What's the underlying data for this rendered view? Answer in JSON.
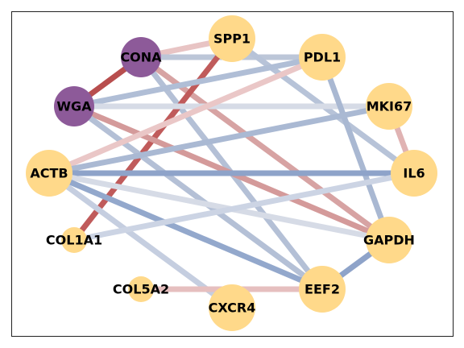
{
  "diagram": {
    "nodes": [
      {
        "id": "CONA",
        "label": "CONA",
        "color": "#8d5a99",
        "size": "medium"
      },
      {
        "id": "WGA",
        "label": "WGA",
        "color": "#8d5a99",
        "size": "medium"
      },
      {
        "id": "SPP1",
        "label": "SPP1",
        "color": "#ffd98a",
        "size": "large"
      },
      {
        "id": "PDL1",
        "label": "PDL1",
        "color": "#ffd98a",
        "size": "large"
      },
      {
        "id": "MKI67",
        "label": "MKI67",
        "color": "#ffd98a",
        "size": "large"
      },
      {
        "id": "IL6",
        "label": "IL6",
        "color": "#ffd98a",
        "size": "large"
      },
      {
        "id": "GAPDH",
        "label": "GAPDH",
        "color": "#ffd98a",
        "size": "large"
      },
      {
        "id": "EEF2",
        "label": "EEF2",
        "color": "#ffd98a",
        "size": "large"
      },
      {
        "id": "CXCR4",
        "label": "CXCR4",
        "color": "#ffd98a",
        "size": "large"
      },
      {
        "id": "COL5A2",
        "label": "COL5A2",
        "color": "#ffd98a",
        "size": "small"
      },
      {
        "id": "COL1A1",
        "label": "COL1A1",
        "color": "#ffd98a",
        "size": "small"
      },
      {
        "id": "ACTB",
        "label": "ACTB",
        "color": "#ffd98a",
        "size": "large"
      }
    ],
    "edges": [
      {
        "source": "CONA",
        "target": "SPP1",
        "color": "#e8c4c4"
      },
      {
        "source": "CONA",
        "target": "PDL1",
        "color": "#bcc6d8"
      },
      {
        "source": "CONA",
        "target": "GAPDH",
        "color": "#d7a3a3"
      },
      {
        "source": "CONA",
        "target": "EEF2",
        "color": "#b4c0d6"
      },
      {
        "source": "SPP1",
        "target": "IL6",
        "color": "#b7c3d8"
      },
      {
        "source": "SPP1",
        "target": "COL1A1",
        "color": "#c05b5b"
      },
      {
        "source": "WGA",
        "target": "CONA",
        "color": "#b84e4e"
      },
      {
        "source": "WGA",
        "target": "PDL1",
        "color": "#b0bed6"
      },
      {
        "source": "WGA",
        "target": "MKI67",
        "color": "#d6dbe6"
      },
      {
        "source": "WGA",
        "target": "GAPDH",
        "color": "#d49a9a"
      },
      {
        "source": "WGA",
        "target": "EEF2",
        "color": "#b4c0d6"
      },
      {
        "source": "PDL1",
        "target": "GAPDH",
        "color": "#a9b8d2"
      },
      {
        "source": "PDL1",
        "target": "ACTB",
        "color": "#eac7c7"
      },
      {
        "source": "MKI67",
        "target": "IL6",
        "color": "#e0b3b3"
      },
      {
        "source": "MKI67",
        "target": "ACTB",
        "color": "#aab9d3"
      },
      {
        "source": "ACTB",
        "target": "IL6",
        "color": "#8ea3c9"
      },
      {
        "source": "ACTB",
        "target": "GAPDH",
        "color": "#d6dbe6"
      },
      {
        "source": "ACTB",
        "target": "EEF2",
        "color": "#93a8cc"
      },
      {
        "source": "ACTB",
        "target": "CXCR4",
        "color": "#c5cee0"
      },
      {
        "source": "IL6",
        "target": "COL1A1",
        "color": "#ccd4e4"
      },
      {
        "source": "GAPDH",
        "target": "EEF2",
        "color": "#8ea3c9"
      },
      {
        "source": "COL5A2",
        "target": "EEF2",
        "color": "#e6bfbf"
      }
    ]
  }
}
